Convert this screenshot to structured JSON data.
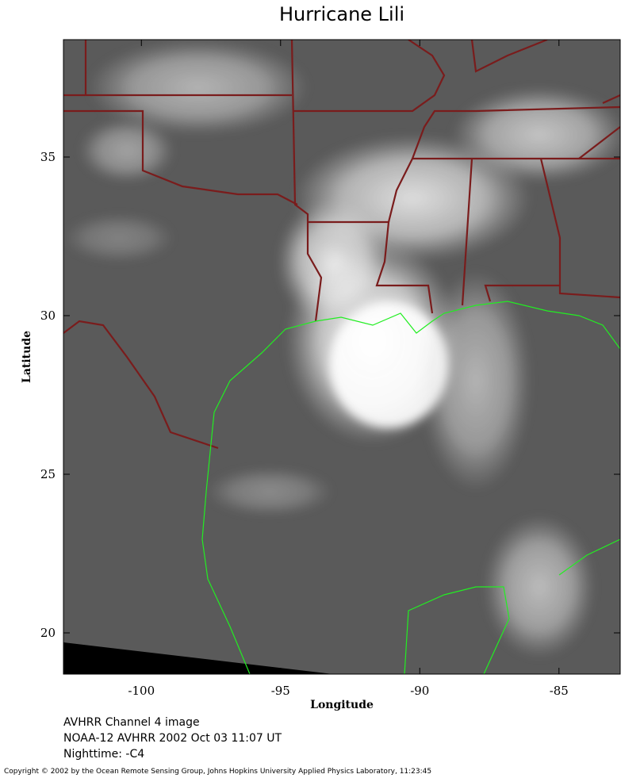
{
  "chart_data": {
    "type": "map",
    "title": "Hurricane Lili",
    "xlabel": "Longitude",
    "ylabel": "Latitude",
    "xlim": [
      -102.8,
      -82.8
    ],
    "ylim": [
      18.7,
      38.7
    ],
    "xticks": [
      -100,
      -95,
      -90,
      -85
    ],
    "yticks": [
      20,
      25,
      30,
      35
    ],
    "notes": [
      "AVHRR Channel 4 image",
      "NOAA-12 AVHRR 2002 Oct 03 11:07 UT",
      "Nighttime: -C4"
    ],
    "copyright": "Copyright © 2002 by the Ocean Remote Sensing Group, Johns Hopkins University Applied Physics Laboratory, 11:23:45"
  }
}
